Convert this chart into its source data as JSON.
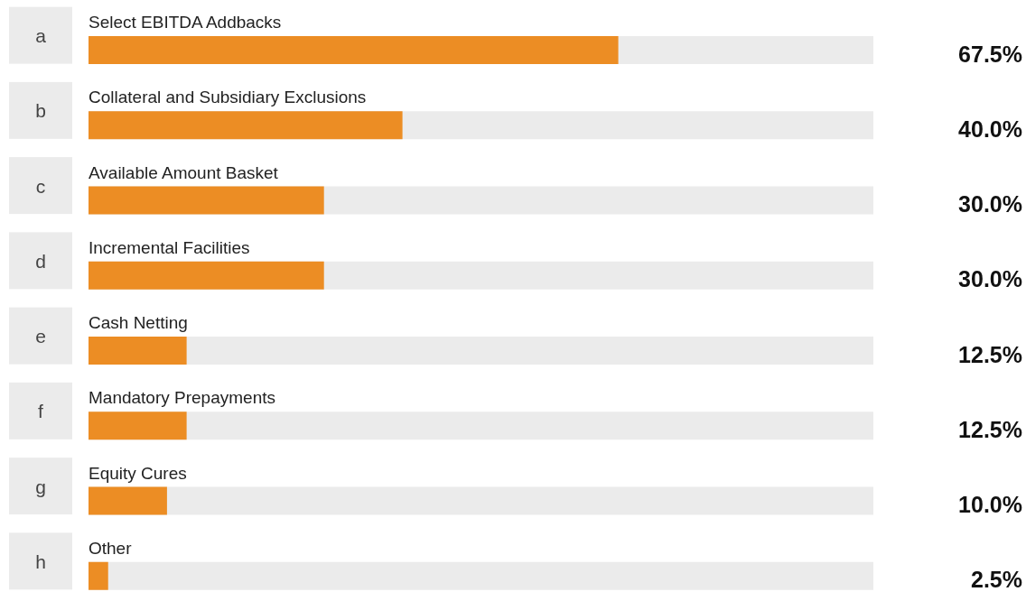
{
  "chart_data": {
    "type": "bar",
    "orientation": "horizontal",
    "categories": [
      "Select EBITDA Addbacks",
      "Collateral and Subsidiary Exclusions",
      "Available Amount Basket",
      "Incremental Facilities",
      "Cash Netting",
      "Mandatory Prepayments",
      "Equity Cures",
      "Other"
    ],
    "values": [
      67.5,
      40.0,
      30.0,
      30.0,
      12.5,
      12.5,
      10.0,
      2.5
    ],
    "value_labels": [
      "67.5%",
      "40.0%",
      "30.0%",
      "30.0%",
      "12.5%",
      "12.5%",
      "10.0%",
      "2.5%"
    ],
    "color": "#ec8d24",
    "xlim": [
      0,
      100
    ],
    "annotations": [
      "a",
      "b",
      "c",
      "d",
      "e",
      "f",
      "g",
      "h"
    ]
  }
}
